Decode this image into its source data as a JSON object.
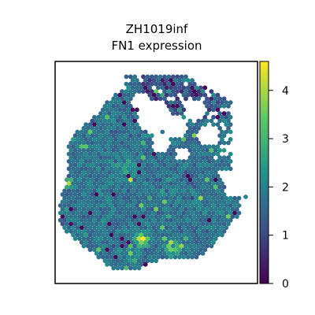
{
  "chart_data": {
    "type": "scatter",
    "subtype": "spatial-hexbin-expression",
    "title_lines": [
      "ZH1019inf",
      "FN1 expression"
    ],
    "colormap": "viridis",
    "colormap_stops": [
      "#440154",
      "#3b528b",
      "#21918c",
      "#5ec962",
      "#fde725"
    ],
    "color_range": [
      0,
      4.6
    ],
    "colorbar": {
      "ticks": [
        0,
        1,
        2,
        3,
        4
      ],
      "tick_labels": [
        "0",
        "1",
        "2",
        "3",
        "4"
      ],
      "placement": "right"
    },
    "axes": {
      "visible_ticks": false,
      "frame": true,
      "grid": false
    },
    "points_note_free": true
  }
}
